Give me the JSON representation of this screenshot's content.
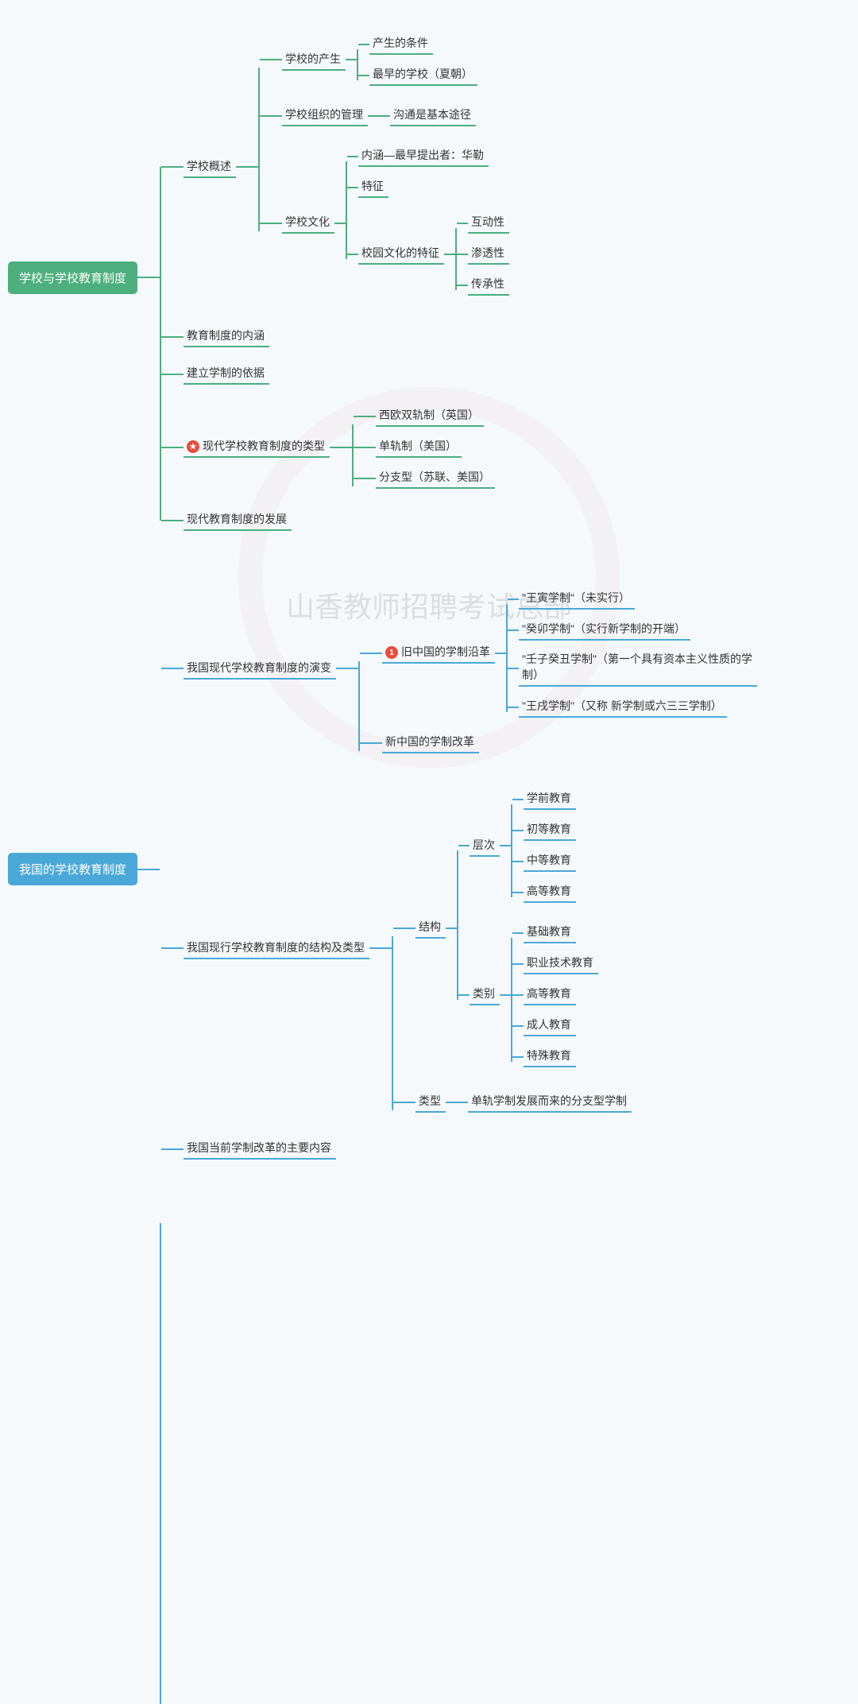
{
  "watermark_text": "山香教师招聘考试总部",
  "colors": {
    "green": "#4caf7d",
    "blue": "#4aa8d8",
    "green_line": "#4caf7d",
    "blue_line": "#4aa8d8",
    "root_green_bg": "#4caf7d",
    "root_blue_bg": "#4aa8d8",
    "text": "#333333",
    "bg": "#f5f9fc"
  },
  "font_sizes": {
    "root": 15,
    "node": 14,
    "badge": 10
  },
  "trees": [
    {
      "color": "#4caf7d",
      "root": "学校与学校教育制度",
      "children": [
        {
          "label": "学校概述",
          "children": [
            {
              "label": "学校的产生",
              "children": [
                {
                  "label": "产生的条件"
                },
                {
                  "label": "最早的学校（夏朝）"
                }
              ]
            },
            {
              "label": "学校组织的管理",
              "children": [
                {
                  "label": "沟通是基本途径"
                }
              ]
            },
            {
              "label": "学校文化",
              "children": [
                {
                  "label": "内涵—最早提出者：华勒"
                },
                {
                  "label": "特征"
                },
                {
                  "label": "校园文化的特征",
                  "children": [
                    {
                      "label": "互动性"
                    },
                    {
                      "label": "渗透性"
                    },
                    {
                      "label": "传承性"
                    }
                  ]
                }
              ]
            }
          ]
        },
        {
          "label": "教育制度的内涵"
        },
        {
          "label": "建立学制的依据"
        },
        {
          "label": "现代学校教育制度的类型",
          "badge": "star",
          "children": [
            {
              "label": "西欧双轨制（英国）"
            },
            {
              "label": "单轨制（美国）"
            },
            {
              "label": "分支型（苏联、美国）"
            }
          ]
        },
        {
          "label": "现代教育制度的发展"
        }
      ]
    },
    {
      "color": "#4aa8d8",
      "root": "我国的学校教育制度",
      "children": [
        {
          "label": "我国现代学校教育制度的演变",
          "children": [
            {
              "label": "旧中国的学制沿革",
              "badge": "1",
              "children": [
                {
                  "label": "\"王寅学制\"（未实行）"
                },
                {
                  "label": "\"癸卯学制\"（实行新学制的开端）"
                },
                {
                  "label": "\"壬子癸丑学制\"（第一个具有资本主义性质的学制）",
                  "wrap": true
                },
                {
                  "label": "\"王戌学制\"（又称 新学制或六三三学制）"
                }
              ]
            },
            {
              "label": "新中国的学制改革"
            }
          ]
        },
        {
          "label": "我国现行学校教育制度的结构及类型",
          "children": [
            {
              "label": "结构",
              "children": [
                {
                  "label": "层次",
                  "children": [
                    {
                      "label": "学前教育"
                    },
                    {
                      "label": "初等教育"
                    },
                    {
                      "label": "中等教育"
                    },
                    {
                      "label": "高等教育"
                    }
                  ]
                },
                {
                  "label": "类别",
                  "children": [
                    {
                      "label": "基础教育"
                    },
                    {
                      "label": "职业技术教育"
                    },
                    {
                      "label": "高等教育"
                    },
                    {
                      "label": "成人教育"
                    },
                    {
                      "label": "特殊教育"
                    }
                  ]
                }
              ]
            },
            {
              "label": "类型",
              "children": [
                {
                  "label": "单轨学制发展而来的分支型学制"
                }
              ]
            }
          ]
        },
        {
          "label": "我国当前学制改革的主要内容"
        }
      ]
    }
  ]
}
